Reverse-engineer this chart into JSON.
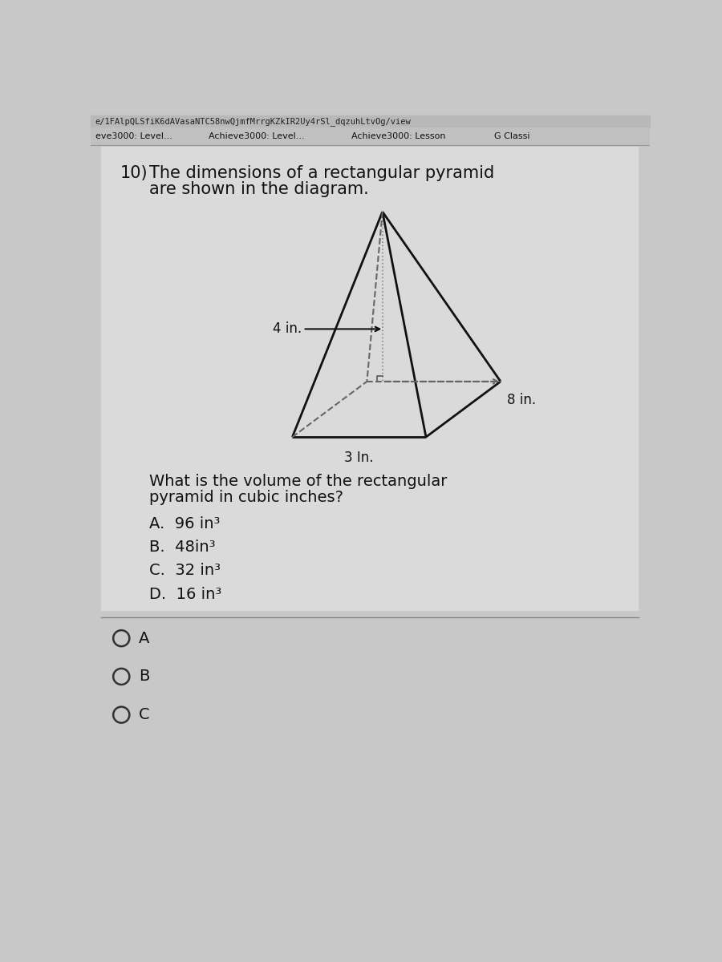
{
  "browser_bar_text": "e/1FAlpQLSfiK6dAVasaNTC58nwQjmfMrrgKZkIR2Uy4rSl_dqzuhLtvOg/view",
  "tab_items": [
    "eve3000: Level...",
    "Achieve3000: Level...",
    "Achieve3000: Lesson",
    "G Classi"
  ],
  "question_number": "10)",
  "question_text_line1": "The dimensions of a rectangular pyramid",
  "question_text_line2": "are shown in the diagram.",
  "dim_4in": "4 in.",
  "dim_8in": "8 in.",
  "dim_3in": "3 In.",
  "follow_question_line1": "What is the volume of the rectangular",
  "follow_question_line2": "pyramid in cubic inches?",
  "choices": [
    "A.  96 in³",
    "B.  48in³",
    "C.  32 in³",
    "D.  16 in³"
  ],
  "radio_labels": [
    "A",
    "B",
    "C"
  ],
  "bg_main": "#c8c8c8",
  "bg_content": "#d4d4d4",
  "bg_tab": "#c0c0c0",
  "bg_url": "#b8b8b8",
  "text_color": "#111111",
  "pyramid_line_color": "#111111",
  "dashed_line_color": "#666666",
  "separator_color": "#888888",
  "radio_edge": "#333333"
}
